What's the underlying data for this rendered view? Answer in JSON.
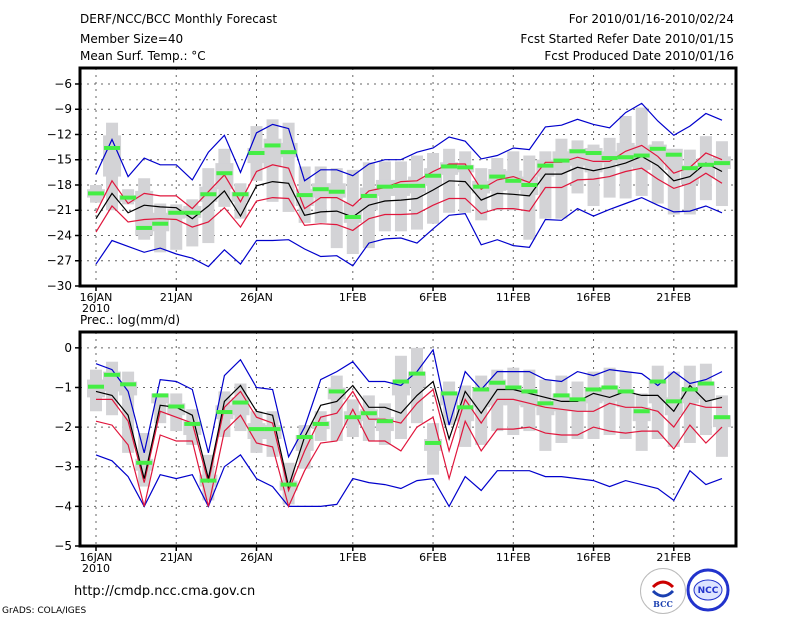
{
  "header": {
    "title": "DERF/NCC/BCC Monthly Forecast",
    "member_size": "Member Size=40",
    "variable": "Mean Surf. Temp.: °C",
    "period": "For 2010/01/16-2010/02/24",
    "start_date": "Fcst Started Refer Date 2010/01/15",
    "produced_date": "Fcst Produced Date 2010/01/16"
  },
  "footer": {
    "url": "http://cmdp.ncc.cma.gov.cn",
    "grads": "GrADS: COLA/IGES",
    "logos": [
      "BCC",
      "NCC"
    ]
  },
  "colors": {
    "mean": "#000000",
    "spread": "#e0163c",
    "extreme": "#0000cc",
    "box": "#d3d3d6",
    "median": "#44ee44"
  },
  "chart_data": [
    {
      "type": "line",
      "title": "Mean Surf. Temp.: °C",
      "xlabel": "",
      "ylabel": "",
      "ylim": [
        -30,
        -3
      ],
      "yticks": [
        -6,
        -9,
        -12,
        -15,
        -18,
        -21,
        -24,
        -27,
        -30
      ],
      "x_tick_labels": [
        "16JAN",
        "21JAN",
        "26JAN",
        "1FEB",
        "6FEB",
        "11FEB",
        "16FEB",
        "21FEB"
      ],
      "x_tick_days": [
        0,
        5,
        10,
        16,
        21,
        26,
        31,
        36
      ],
      "x_year_label": "2010",
      "grid": true,
      "days": 40,
      "series": [
        {
          "name": "mean",
          "values": [
            -22.0,
            -19.0,
            -21.3,
            -20.4,
            -20.6,
            -20.7,
            -22.0,
            -20.5,
            -18.7,
            -21.7,
            -18.1,
            -17.6,
            -17.8,
            -21.6,
            -21.2,
            -21.1,
            -21.8,
            -20.4,
            -19.9,
            -19.8,
            -19.6,
            -18.6,
            -17.5,
            -17.6,
            -19.8,
            -19.0,
            -19.1,
            -19.3,
            -16.7,
            -16.7,
            -15.9,
            -16.3,
            -15.9,
            -15.4,
            -14.6,
            -15.7,
            -17.5,
            -17.0,
            -15.4,
            -16.4
          ]
        },
        {
          "name": "upper-spread",
          "values": [
            -21.3,
            -17.5,
            -20.2,
            -19.0,
            -19.3,
            -19.3,
            -20.8,
            -18.8,
            -16.8,
            -20.0,
            -16.4,
            -15.6,
            -16.0,
            -20.8,
            -19.5,
            -19.5,
            -20.5,
            -18.7,
            -18.3,
            -17.6,
            -17.5,
            -16.4,
            -15.5,
            -15.5,
            -18.5,
            -17.4,
            -17.0,
            -17.7,
            -15.3,
            -15.3,
            -14.7,
            -15.2,
            -15.2,
            -14.0,
            -13.3,
            -14.6,
            -16.6,
            -15.9,
            -14.2,
            -15.0
          ]
        },
        {
          "name": "lower-spread",
          "values": [
            -23.6,
            -20.5,
            -22.4,
            -22.1,
            -22.0,
            -22.1,
            -23.0,
            -22.4,
            -20.7,
            -23.0,
            -19.9,
            -19.5,
            -19.6,
            -22.8,
            -22.6,
            -22.7,
            -23.4,
            -22.0,
            -21.5,
            -21.5,
            -21.4,
            -20.4,
            -19.6,
            -19.6,
            -21.4,
            -20.8,
            -20.8,
            -21.1,
            -18.3,
            -18.3,
            -17.4,
            -17.3,
            -17.0,
            -16.4,
            -16.0,
            -17.3,
            -18.4,
            -17.8,
            -16.6,
            -17.8
          ]
        },
        {
          "name": "maximum",
          "values": [
            -16.7,
            -12.6,
            -17.0,
            -14.8,
            -15.6,
            -15.6,
            -17.4,
            -14.1,
            -12.1,
            -16.5,
            -11.8,
            -10.8,
            -11.3,
            -17.5,
            -16.2,
            -16.2,
            -16.9,
            -15.5,
            -15.0,
            -15.0,
            -14.1,
            -13.6,
            -12.3,
            -12.8,
            -14.9,
            -14.5,
            -13.6,
            -13.8,
            -11.1,
            -10.9,
            -10.2,
            -10.8,
            -11.2,
            -9.4,
            -8.3,
            -10.4,
            -12.1,
            -11.0,
            -9.5,
            -10.3
          ]
        },
        {
          "name": "minimum",
          "values": [
            -27.4,
            -24.6,
            -25.3,
            -26.0,
            -25.5,
            -26.2,
            -26.7,
            -27.7,
            -25.7,
            -27.4,
            -24.6,
            -24.6,
            -24.5,
            -25.6,
            -26.5,
            -26.4,
            -27.6,
            -24.9,
            -24.4,
            -24.3,
            -24.9,
            -23.2,
            -21.6,
            -21.4,
            -25.1,
            -24.5,
            -25.2,
            -25.4,
            -22.1,
            -22.2,
            -20.8,
            -21.7,
            -20.9,
            -20.2,
            -19.5,
            -20.4,
            -21.2,
            -21.1,
            -20.5,
            -21.3
          ]
        },
        {
          "name": "median",
          "values": [
            -19.0,
            -13.6,
            -19.5,
            -23.1,
            -22.6,
            -21.3,
            -21.3,
            -19.1,
            -16.6,
            -19.1,
            -14.2,
            -13.3,
            -14.1,
            -19.2,
            -18.5,
            -18.8,
            -21.8,
            -19.3,
            -18.2,
            -18.1,
            -18.1,
            -16.9,
            -15.8,
            -15.9,
            -18.2,
            -17.0,
            -17.5,
            -18.0,
            -15.7,
            -15.1,
            -14.0,
            -14.2,
            -14.8,
            -14.7,
            -14.5,
            -13.7,
            -14.4,
            -16.0,
            -15.6,
            -15.4
          ]
        },
        {
          "name": "box-outer-top",
          "values": [
            -18.0,
            -10.6,
            -18.5,
            -17.2,
            -20.2,
            -20.3,
            -19.7,
            -16.0,
            -13.7,
            -17.8,
            -11.0,
            -10.2,
            -10.6,
            -15.8,
            -15.8,
            -16.0,
            -16.2,
            -15.3,
            -15.2,
            -15.2,
            -14.5,
            -14.2,
            -13.7,
            -14.0,
            -16.0,
            -14.8,
            -14.0,
            -14.5,
            -14.0,
            -12.5,
            -12.7,
            -13.2,
            -12.4,
            -9.8,
            -8.8,
            -12.8,
            -14.3,
            -13.8,
            -12.2,
            -12.8
          ]
        },
        {
          "name": "box-outer-bottom",
          "values": [
            -20.1,
            -21.0,
            -20.3,
            -24.5,
            -26.0,
            -25.7,
            -25.3,
            -24.9,
            -20.6,
            -22.0,
            -17.5,
            -20.0,
            -21.2,
            -22.5,
            -22.5,
            -25.5,
            -26.2,
            -25.5,
            -23.5,
            -23.5,
            -23.3,
            -22.6,
            -21.3,
            -21.3,
            -22.2,
            -21.0,
            -21.0,
            -24.5,
            -22.0,
            -22.0,
            -19.0,
            -20.5,
            -19.5,
            -19.6,
            -19.3,
            -20.2,
            -21.5,
            -21.5,
            -19.8,
            -20.5
          ]
        },
        {
          "name": "box-inner-top",
          "values": [
            -18.5,
            -12.1,
            -19.2,
            -18.7,
            -21.3,
            -20.8,
            -20.5,
            -18.2,
            -15.4,
            -18.8,
            -13.6,
            -12.5,
            -13.0,
            -18.5,
            -17.8,
            -17.8,
            -20.0,
            -18.3,
            -17.4,
            -17.4,
            -17.0,
            -16.0,
            -15.3,
            -15.6,
            -17.5,
            -16.1,
            -16.3,
            -17.0,
            -15.0,
            -14.0,
            -13.7,
            -13.6,
            -14.0,
            -13.0,
            -13.3,
            -13.2,
            -13.7,
            -15.6,
            -14.8,
            -14.6
          ]
        },
        {
          "name": "box-inner-bottom",
          "values": [
            -19.5,
            -17.0,
            -20.0,
            -24.0,
            -23.5,
            -22.0,
            -21.9,
            -20.0,
            -18.5,
            -20.0,
            -15.4,
            -15.9,
            -14.7,
            -20.5,
            -19.5,
            -19.5,
            -22.5,
            -21.0,
            -19.3,
            -19.3,
            -19.0,
            -18.1,
            -16.8,
            -16.5,
            -19.0,
            -18.7,
            -18.6,
            -19.2,
            -17.0,
            -16.4,
            -15.7,
            -16.5,
            -15.4,
            -15.9,
            -16.2,
            -15.2,
            -16.2,
            -17.9,
            -17.2,
            -16.1
          ]
        }
      ]
    },
    {
      "type": "line",
      "title": "Prec.: log(mm/d)",
      "xlabel": "",
      "ylabel": "",
      "ylim": [
        -5,
        0.4
      ],
      "yticks": [
        0,
        -1,
        -2,
        -3,
        -4,
        -5
      ],
      "x_tick_labels": [
        "16JAN",
        "21JAN",
        "26JAN",
        "1FEB",
        "6FEB",
        "11FEB",
        "16FEB",
        "21FEB"
      ],
      "x_tick_days": [
        0,
        5,
        10,
        16,
        21,
        26,
        31,
        36
      ],
      "x_year_label": "2010",
      "grid": true,
      "days": 40,
      "series": [
        {
          "name": "mean",
          "values": [
            -1.1,
            -1.2,
            -1.7,
            -3.3,
            -1.45,
            -1.5,
            -1.7,
            -3.3,
            -1.35,
            -0.95,
            -1.6,
            -1.7,
            -3.5,
            -2.25,
            -1.45,
            -1.35,
            -0.95,
            -1.5,
            -1.5,
            -1.65,
            -1.2,
            -0.85,
            -2.3,
            -1.1,
            -1.65,
            -1.05,
            -1.05,
            -1.15,
            -1.25,
            -1.35,
            -1.35,
            -1.15,
            -1.25,
            -1.1,
            -1.2,
            -1.2,
            -1.6,
            -0.95,
            -1.35,
            -1.25
          ]
        },
        {
          "name": "upper-spread",
          "values": [
            -1.3,
            -1.3,
            -1.85,
            -3.4,
            -1.6,
            -1.75,
            -1.9,
            -3.4,
            -1.5,
            -1.1,
            -1.75,
            -1.9,
            -3.6,
            -2.6,
            -1.75,
            -1.65,
            -1.1,
            -1.8,
            -1.8,
            -1.9,
            -1.4,
            -1.05,
            -2.6,
            -1.3,
            -1.9,
            -1.3,
            -1.3,
            -1.4,
            -1.5,
            -1.55,
            -1.6,
            -1.6,
            -1.4,
            -1.5,
            -1.5,
            -1.6,
            -2.0,
            -1.4,
            -1.5,
            -1.5
          ]
        },
        {
          "name": "lower-spread",
          "values": [
            -1.85,
            -1.95,
            -2.45,
            -4.0,
            -2.2,
            -2.35,
            -2.35,
            -4.0,
            -2.1,
            -1.7,
            -2.4,
            -2.5,
            -4.0,
            -3.1,
            -2.4,
            -2.35,
            -1.55,
            -2.35,
            -2.35,
            -2.6,
            -2.0,
            -1.75,
            -3.3,
            -1.85,
            -2.6,
            -2.05,
            -2.05,
            -2.0,
            -2.15,
            -2.2,
            -2.2,
            -2.0,
            -2.1,
            -2.15,
            -2.1,
            -2.1,
            -2.55,
            -1.95,
            -2.4,
            -2.0
          ]
        },
        {
          "name": "maximum",
          "values": [
            -0.4,
            -0.55,
            -1.1,
            -2.65,
            -0.8,
            -0.85,
            -1.05,
            -2.65,
            -0.7,
            -0.3,
            -1.0,
            -1.05,
            -2.75,
            -2.0,
            -0.8,
            -0.6,
            -0.35,
            -0.85,
            -0.85,
            -0.95,
            -0.6,
            -0.05,
            -1.95,
            -0.6,
            -1.05,
            -0.6,
            -0.6,
            -0.6,
            -0.8,
            -0.85,
            -0.6,
            -0.7,
            -0.55,
            -0.6,
            -0.65,
            -0.95,
            -0.6,
            -0.9,
            -0.8,
            -0.6
          ]
        },
        {
          "name": "minimum",
          "values": [
            -2.7,
            -2.85,
            -3.25,
            -4.0,
            -3.2,
            -3.3,
            -3.2,
            -4.0,
            -3.0,
            -2.7,
            -3.3,
            -3.5,
            -4.0,
            -4.0,
            -4.0,
            -3.95,
            -3.3,
            -3.4,
            -3.45,
            -3.55,
            -3.35,
            -3.3,
            -4.0,
            -3.25,
            -3.6,
            -3.1,
            -3.1,
            -3.1,
            -3.25,
            -3.25,
            -3.3,
            -3.35,
            -3.5,
            -3.35,
            -3.45,
            -3.55,
            -3.85,
            -3.1,
            -3.45,
            -3.3
          ]
        },
        {
          "name": "median",
          "values": [
            -0.98,
            -0.68,
            -0.92,
            -2.9,
            -1.2,
            -1.48,
            -1.92,
            -3.35,
            -1.62,
            -1.38,
            -2.05,
            -2.05,
            -3.45,
            -2.25,
            -1.92,
            -1.1,
            -1.75,
            -1.65,
            -1.85,
            -0.85,
            -0.65,
            -2.4,
            -1.15,
            -1.5,
            -1.05,
            -0.88,
            -1.0,
            -1.1,
            -1.4,
            -1.2,
            -1.3,
            -1.05,
            -1.0,
            -1.1,
            -1.6,
            -0.85,
            -1.35,
            -1.05,
            -0.9,
            -1.75
          ]
        },
        {
          "name": "box-outer-top",
          "values": [
            -0.55,
            -0.35,
            -0.6,
            -2.15,
            -1.15,
            -1.15,
            -1.55,
            -2.7,
            -1.1,
            -0.9,
            -1.6,
            -1.6,
            -2.9,
            -1.95,
            -1.6,
            -0.7,
            -1.3,
            -1.2,
            -1.4,
            -0.2,
            0.0,
            -1.9,
            -0.85,
            -0.95,
            -0.7,
            -0.55,
            -0.5,
            -0.55,
            -0.8,
            -0.7,
            -0.85,
            -0.6,
            -0.5,
            -0.6,
            -1.15,
            -0.45,
            -0.6,
            -0.45,
            -0.4,
            -1.2
          ]
        },
        {
          "name": "box-outer-bottom",
          "values": [
            -1.6,
            -1.7,
            -2.65,
            -3.5,
            -1.9,
            -2.1,
            -2.45,
            -3.85,
            -2.25,
            -2.1,
            -2.65,
            -2.75,
            -3.95,
            -3.05,
            -2.35,
            -2.35,
            -2.25,
            -2.35,
            -2.45,
            -2.3,
            -1.9,
            -3.2,
            -1.95,
            -2.5,
            -2.45,
            -2.1,
            -2.2,
            -2.1,
            -2.6,
            -2.4,
            -2.3,
            -2.3,
            -2.2,
            -2.3,
            -2.6,
            -2.3,
            -2.5,
            -2.4,
            -2.2,
            -2.75
          ]
        },
        {
          "name": "box-inner-top",
          "values": [
            -0.8,
            -0.6,
            -0.85,
            -2.8,
            -1.15,
            -1.4,
            -1.85,
            -3.2,
            -1.45,
            -1.25,
            -1.9,
            -1.95,
            -3.35,
            -2.2,
            -1.85,
            -1.0,
            -1.6,
            -1.55,
            -1.75,
            -0.8,
            -0.6,
            -2.3,
            -1.1,
            -1.45,
            -1.0,
            -0.8,
            -0.95,
            -1.05,
            -1.35,
            -1.15,
            -1.25,
            -1.0,
            -0.95,
            -1.05,
            -1.5,
            -0.8,
            -1.25,
            -1.0,
            -0.85,
            -1.7
          ]
        },
        {
          "name": "box-inner-bottom",
          "values": [
            -1.25,
            -1.1,
            -1.2,
            -3.1,
            -1.4,
            -1.7,
            -2.2,
            -3.5,
            -1.8,
            -1.7,
            -2.3,
            -2.3,
            -3.6,
            -2.6,
            -2.05,
            -1.3,
            -1.95,
            -1.85,
            -2.1,
            -1.2,
            -1.0,
            -2.6,
            -1.45,
            -1.85,
            -1.5,
            -1.45,
            -1.45,
            -1.5,
            -1.7,
            -1.6,
            -1.6,
            -1.4,
            -1.35,
            -1.5,
            -1.85,
            -1.4,
            -1.7,
            -1.4,
            -1.3,
            -2.0
          ]
        }
      ]
    }
  ]
}
